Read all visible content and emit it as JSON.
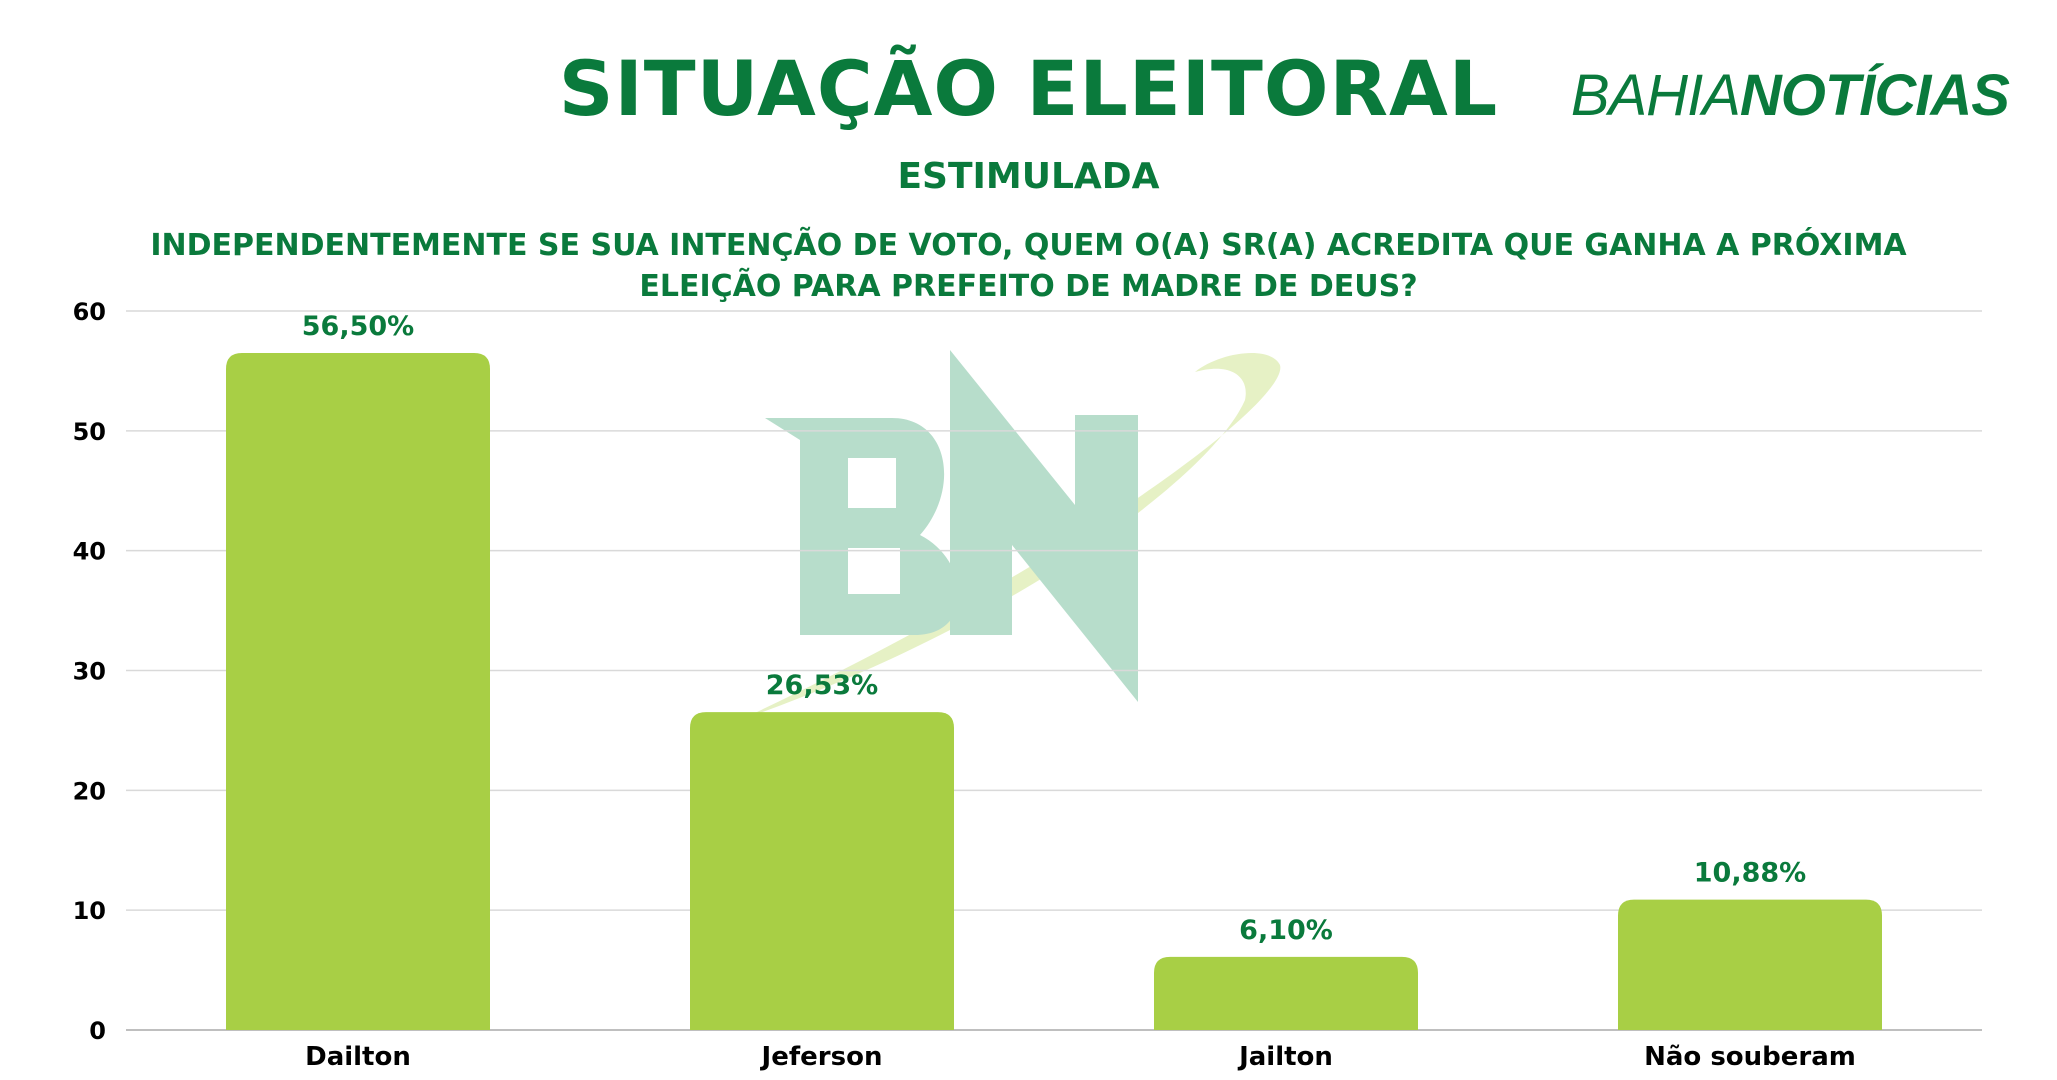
{
  "header": {
    "title": "SITUAÇÃO ELEITORAL",
    "subtitle": "ESTIMULADA",
    "question": "INDEPENDENTEMENTE SE SUA INTENÇÃO DE VOTO, QUEM O(A) SR(A) ACREDITA QUE GANHA A PRÓXIMA ELEIÇÃO PARA PREFEITO DE MADRE DE DEUS?"
  },
  "brand": {
    "part1": "BAHIA",
    "part2": "NOTÍCIAS",
    "watermark": "BN"
  },
  "colors": {
    "brand_green": "#0a7a3c",
    "bar": "#a8cf45",
    "watermark_green": "#b7ddcb",
    "watermark_swoosh": "#e6f1c5",
    "grid": "#d9d9d9"
  },
  "chart_data": {
    "type": "bar",
    "categories": [
      "Dailton",
      "Jeferson",
      "Jailton",
      "Não souberam"
    ],
    "values": [
      56.5,
      26.53,
      6.1,
      10.88
    ],
    "data_labels": [
      "56,50%",
      "26,53%",
      "6,10%",
      "10,88%"
    ],
    "yticks": [
      "0",
      "10",
      "20",
      "30",
      "40",
      "50",
      "60"
    ],
    "ylim": [
      0,
      60
    ],
    "grid": true,
    "legend": "none"
  }
}
